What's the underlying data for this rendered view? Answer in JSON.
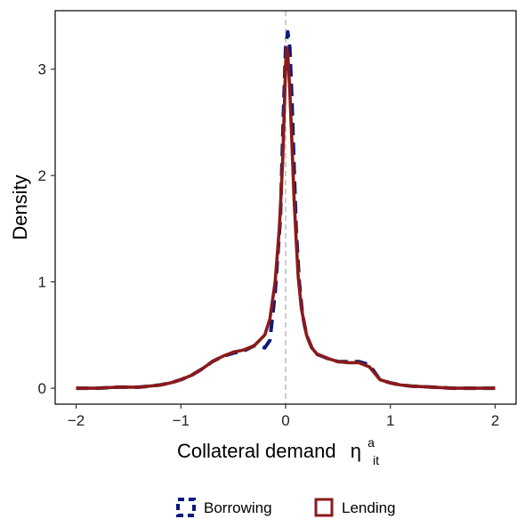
{
  "chart_data": {
    "type": "line",
    "title": "",
    "xlabel": "Collateral demand",
    "xlabel_symbol": "η",
    "xlabel_sub": "it",
    "xlabel_sup": "a",
    "ylabel": "Density",
    "xlim": [
      -2.2,
      2.2
    ],
    "ylim": [
      -0.15,
      3.55
    ],
    "x_ticks": [
      -2,
      -1,
      0,
      1,
      2
    ],
    "x_tick_labels": [
      "−2",
      "−1",
      "0",
      "1",
      "2"
    ],
    "y_ticks": [
      0,
      1,
      2,
      3
    ],
    "y_tick_labels": [
      "0",
      "1",
      "2",
      "3"
    ],
    "grid": false,
    "reference_line": {
      "x": 0,
      "style": "dashed",
      "color": "#bbbbbb"
    },
    "legend_position": "bottom",
    "series": [
      {
        "name": "Borrowing",
        "color": "#0a1a7a",
        "style": "dashed",
        "x": [
          -2.0,
          -1.8,
          -1.6,
          -1.4,
          -1.2,
          -1.1,
          -1.0,
          -0.9,
          -0.8,
          -0.7,
          -0.6,
          -0.5,
          -0.4,
          -0.3,
          -0.2,
          -0.15,
          -0.1,
          -0.05,
          -0.02,
          0.0,
          0.02,
          0.04,
          0.06,
          0.08,
          0.1,
          0.13,
          0.16,
          0.2,
          0.25,
          0.3,
          0.35,
          0.4,
          0.5,
          0.6,
          0.7,
          0.8,
          0.9,
          1.0,
          1.1,
          1.2,
          1.4,
          1.6,
          1.8,
          2.0
        ],
        "y": [
          0.0,
          0.0,
          0.01,
          0.01,
          0.03,
          0.05,
          0.08,
          0.12,
          0.18,
          0.25,
          0.3,
          0.33,
          0.35,
          0.4,
          0.38,
          0.45,
          0.9,
          1.6,
          2.6,
          3.2,
          3.35,
          3.2,
          2.7,
          2.1,
          1.5,
          1.0,
          0.7,
          0.5,
          0.38,
          0.32,
          0.3,
          0.28,
          0.25,
          0.25,
          0.25,
          0.22,
          0.08,
          0.05,
          0.03,
          0.02,
          0.01,
          0.0,
          0.0,
          0.0
        ]
      },
      {
        "name": "Lending",
        "color": "#8b1a1a",
        "style": "solid",
        "x": [
          -2.0,
          -1.8,
          -1.6,
          -1.4,
          -1.2,
          -1.1,
          -1.0,
          -0.9,
          -0.8,
          -0.7,
          -0.6,
          -0.5,
          -0.4,
          -0.3,
          -0.2,
          -0.15,
          -0.1,
          -0.06,
          -0.03,
          -0.01,
          0.0,
          0.01,
          0.02,
          0.04,
          0.06,
          0.08,
          0.1,
          0.12,
          0.15,
          0.2,
          0.25,
          0.3,
          0.35,
          0.4,
          0.5,
          0.6,
          0.7,
          0.8,
          0.9,
          1.0,
          1.1,
          1.2,
          1.4,
          1.6,
          1.8,
          2.0
        ],
        "y": [
          0.0,
          0.0,
          0.01,
          0.01,
          0.03,
          0.05,
          0.08,
          0.12,
          0.18,
          0.25,
          0.3,
          0.34,
          0.36,
          0.4,
          0.5,
          0.65,
          1.0,
          1.5,
          2.1,
          2.7,
          3.05,
          3.2,
          3.15,
          2.8,
          2.3,
          1.8,
          1.4,
          1.05,
          0.75,
          0.5,
          0.38,
          0.32,
          0.3,
          0.28,
          0.25,
          0.24,
          0.24,
          0.2,
          0.08,
          0.05,
          0.03,
          0.02,
          0.01,
          0.0,
          0.0,
          0.0
        ]
      }
    ]
  }
}
